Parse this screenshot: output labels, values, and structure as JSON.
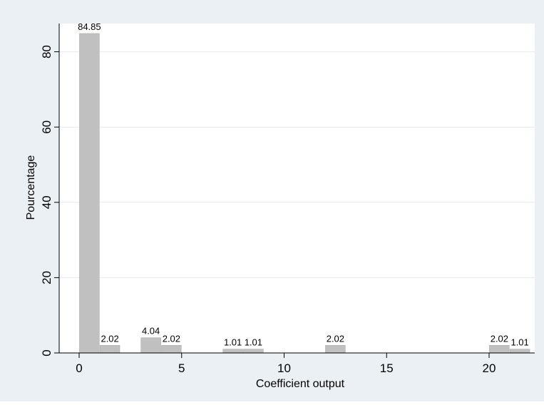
{
  "chart_data": {
    "type": "bar",
    "xlabel": "Coefficient output",
    "ylabel": "Pourcentage",
    "xlim": [
      -1,
      22.5
    ],
    "ylim": [
      0,
      87
    ],
    "xticks": [
      "0",
      "5",
      "10",
      "15",
      "20"
    ],
    "yticks": [
      "0",
      "20",
      "40",
      "60",
      "80"
    ],
    "grid": true,
    "bin_width": 1,
    "bars": [
      {
        "x": 0.5,
        "value": 84.85,
        "label": "84.85"
      },
      {
        "x": 1.5,
        "value": 2.02,
        "label": "2.02"
      },
      {
        "x": 3.5,
        "value": 4.04,
        "label": "4.04"
      },
      {
        "x": 4.5,
        "value": 2.02,
        "label": "2.02"
      },
      {
        "x": 7.5,
        "value": 1.01,
        "label": "1.01"
      },
      {
        "x": 8.5,
        "value": 1.01,
        "label": "1.01"
      },
      {
        "x": 12.5,
        "value": 2.02,
        "label": "2.02"
      },
      {
        "x": 20.5,
        "value": 2.02,
        "label": "2.02"
      },
      {
        "x": 21.5,
        "value": 1.01,
        "label": "1.01"
      }
    ],
    "colors": {
      "outer_background": "#eaf0f3",
      "plot_background": "#ffffff",
      "bar_fill": "#c0c0c0",
      "bar_stroke": "#a9a9a9",
      "grid": "#e6ebee",
      "axis": "#000000"
    }
  }
}
